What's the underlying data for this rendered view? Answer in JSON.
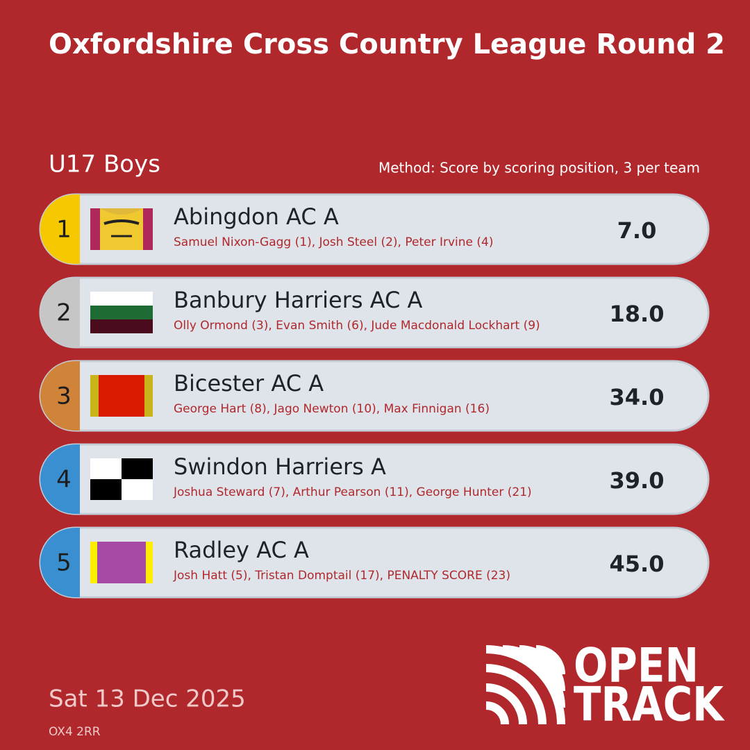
{
  "header": {
    "title": "Oxfordshire Cross Country League Round 2",
    "category": "U17 Boys",
    "method": "Method: Score by scoring position, 3 per team"
  },
  "rows": [
    {
      "position": "1",
      "team": "Abingdon AC A",
      "members": "Samuel Nixon-Gagg (1), Josh Steel (2), Peter Irvine (4)",
      "score": "7.0"
    },
    {
      "position": "2",
      "team": "Banbury Harriers AC A",
      "members": "Olly Ormond (3), Evan Smith (6), Jude Macdonald Lockhart (9)",
      "score": "18.0"
    },
    {
      "position": "3",
      "team": "Bicester AC A",
      "members": "George Hart (8), Jago Newton (10), Max Finnigan (16)",
      "score": "34.0"
    },
    {
      "position": "4",
      "team": "Swindon Harriers A",
      "members": "Joshua Steward (7), Arthur Pearson (11), George Hunter (21)",
      "score": "39.0"
    },
    {
      "position": "5",
      "team": "Radley AC A",
      "members": "Josh Hatt (5), Tristan Domptail (17), PENALTY SCORE (23)",
      "score": "45.0"
    }
  ],
  "footer": {
    "date": "Sat 13 Dec 2025",
    "postcode": "OX4 2RR",
    "logo": [
      "OPEN",
      "TRACK"
    ]
  }
}
